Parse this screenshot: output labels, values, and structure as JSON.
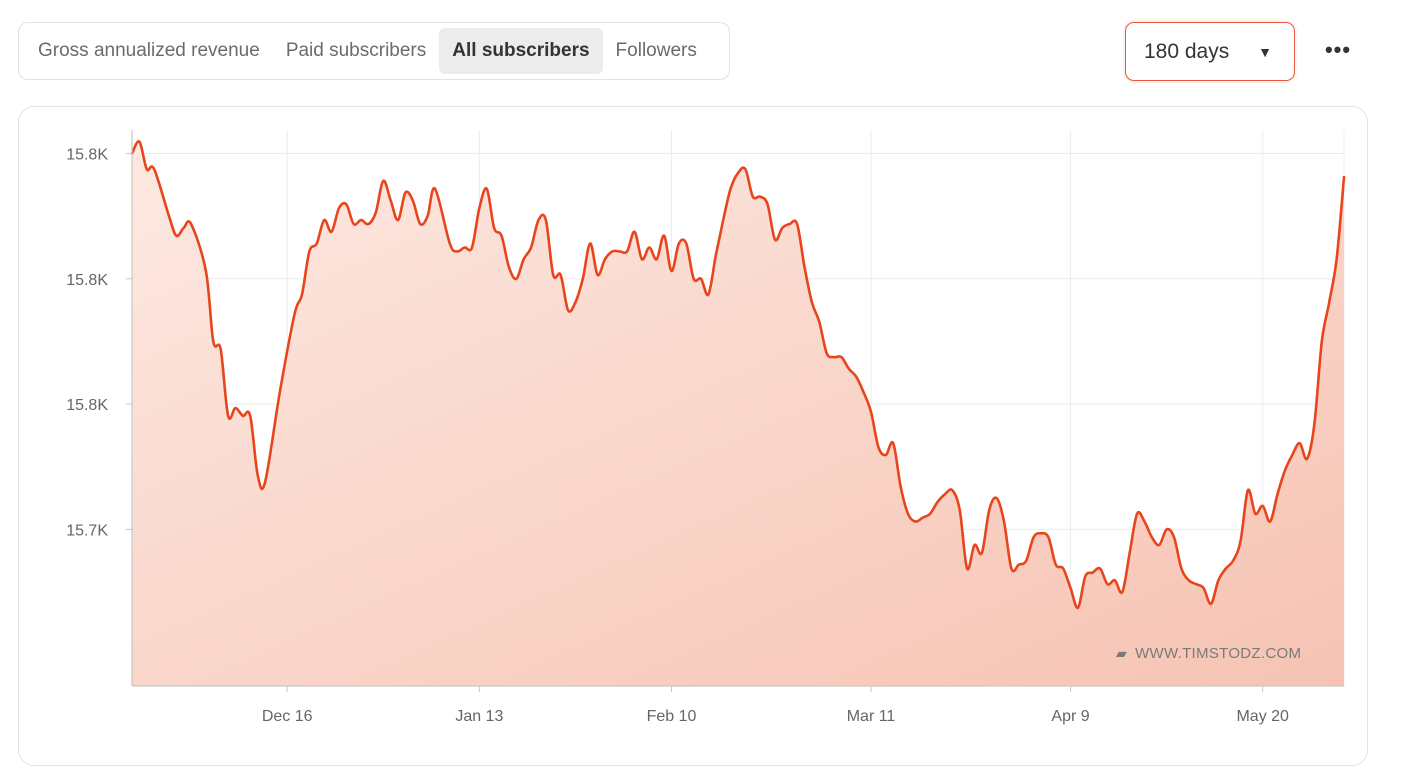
{
  "tabs": [
    {
      "label": "Gross annualized revenue",
      "active": false
    },
    {
      "label": "Paid subscribers",
      "active": false
    },
    {
      "label": "All subscribers",
      "active": true
    },
    {
      "label": "Followers",
      "active": false
    }
  ],
  "range_select": {
    "value": "180 days",
    "icon": "triangle-down-icon"
  },
  "more_menu": {
    "icon": "more-horizontal-icon",
    "glyph": "•••"
  },
  "watermark": {
    "text": "WWW.TIMSTODZ.COM",
    "icon": "bookmark-icon"
  },
  "colors": {
    "line": "#e8451c",
    "fill_top": "#f6c3b3",
    "fill_bottom": "#fde9e2",
    "accent_border": "#e8573d"
  },
  "chart_data": {
    "type": "area",
    "title": "",
    "xlabel": "",
    "ylabel": "",
    "x_tick_labels": [
      "Dec 16",
      "Jan 13",
      "Feb 10",
      "Mar 11",
      "Apr 9",
      "May 20"
    ],
    "y_tick_labels": [
      "15.8K",
      "15.8K",
      "15.8K",
      "15.7K"
    ],
    "series": [
      {
        "values": [
          [
            0,
            15826
          ],
          [
            1,
            15829
          ],
          [
            2,
            15822
          ],
          [
            3,
            15822
          ],
          [
            5,
            15810
          ],
          [
            6,
            15805
          ],
          [
            7,
            15807
          ],
          [
            8,
            15808
          ],
          [
            10,
            15796
          ],
          [
            11,
            15778
          ],
          [
            12,
            15776
          ],
          [
            13,
            15759
          ],
          [
            14,
            15761
          ],
          [
            15,
            15759
          ],
          [
            16,
            15759
          ],
          [
            17,
            15744
          ],
          [
            18,
            15742
          ],
          [
            20,
            15765
          ],
          [
            22,
            15785
          ],
          [
            23,
            15790
          ],
          [
            24,
            15801
          ],
          [
            25,
            15803
          ],
          [
            26,
            15809
          ],
          [
            27,
            15806
          ],
          [
            28,
            15812
          ],
          [
            29,
            15813
          ],
          [
            30,
            15808
          ],
          [
            31,
            15809
          ],
          [
            32,
            15808
          ],
          [
            33,
            15811
          ],
          [
            34,
            15819
          ],
          [
            35,
            15814
          ],
          [
            36,
            15809
          ],
          [
            37,
            15816
          ],
          [
            38,
            15814
          ],
          [
            39,
            15808
          ],
          [
            40,
            15810
          ],
          [
            41,
            15817
          ],
          [
            43,
            15803
          ],
          [
            44,
            15801
          ],
          [
            45,
            15802
          ],
          [
            46,
            15802
          ],
          [
            47,
            15812
          ],
          [
            48,
            15817
          ],
          [
            49,
            15807
          ],
          [
            50,
            15805
          ],
          [
            51,
            15797
          ],
          [
            52,
            15794
          ],
          [
            53,
            15799
          ],
          [
            54,
            15802
          ],
          [
            55,
            15809
          ],
          [
            56,
            15809
          ],
          [
            57,
            15795
          ],
          [
            58,
            15795
          ],
          [
            59,
            15786
          ],
          [
            60,
            15788
          ],
          [
            61,
            15794
          ],
          [
            62,
            15803
          ],
          [
            63,
            15795
          ],
          [
            64,
            15799
          ],
          [
            65,
            15801
          ],
          [
            66,
            15801
          ],
          [
            67,
            15801
          ],
          [
            68,
            15806
          ],
          [
            69,
            15799
          ],
          [
            70,
            15802
          ],
          [
            71,
            15799
          ],
          [
            72,
            15805
          ],
          [
            73,
            15796
          ],
          [
            74,
            15803
          ],
          [
            75,
            15803
          ],
          [
            76,
            15794
          ],
          [
            77,
            15794
          ],
          [
            78,
            15790
          ],
          [
            79,
            15800
          ],
          [
            80,
            15809
          ],
          [
            81,
            15817
          ],
          [
            82,
            15821
          ],
          [
            83,
            15822
          ],
          [
            84,
            15815
          ],
          [
            85,
            15815
          ],
          [
            86,
            15813
          ],
          [
            87,
            15804
          ],
          [
            88,
            15807
          ],
          [
            89,
            15808
          ],
          [
            90,
            15808
          ],
          [
            91,
            15797
          ],
          [
            92,
            15788
          ],
          [
            93,
            15783
          ],
          [
            94,
            15775
          ],
          [
            95,
            15774
          ],
          [
            96,
            15774
          ],
          [
            97,
            15771
          ],
          [
            98,
            15769
          ],
          [
            99,
            15765
          ],
          [
            100,
            15760
          ],
          [
            101,
            15751
          ],
          [
            102,
            15749
          ],
          [
            103,
            15752
          ],
          [
            104,
            15741
          ],
          [
            105,
            15734
          ],
          [
            106,
            15732
          ],
          [
            107,
            15733
          ],
          [
            108,
            15734
          ],
          [
            109,
            15737
          ],
          [
            110,
            15739
          ],
          [
            111,
            15740
          ],
          [
            112,
            15735
          ],
          [
            113,
            15720
          ],
          [
            114,
            15726
          ],
          [
            115,
            15724
          ],
          [
            116,
            15735
          ],
          [
            117,
            15738
          ],
          [
            118,
            15732
          ],
          [
            119,
            15720
          ],
          [
            120,
            15721
          ],
          [
            121,
            15722
          ],
          [
            122,
            15728
          ],
          [
            123,
            15729
          ],
          [
            124,
            15728
          ],
          [
            125,
            15721
          ],
          [
            126,
            15720
          ],
          [
            127,
            15715
          ],
          [
            128,
            15710
          ],
          [
            129,
            15718
          ],
          [
            130,
            15719
          ],
          [
            131,
            15720
          ],
          [
            132,
            15716
          ],
          [
            133,
            15717
          ],
          [
            134,
            15714
          ],
          [
            135,
            15724
          ],
          [
            136,
            15734
          ],
          [
            137,
            15732
          ],
          [
            138,
            15728
          ],
          [
            139,
            15726
          ],
          [
            140,
            15730
          ],
          [
            141,
            15728
          ],
          [
            142,
            15720
          ],
          [
            143,
            15717
          ],
          [
            144,
            15716
          ],
          [
            145,
            15715
          ],
          [
            146,
            15711
          ],
          [
            147,
            15717
          ],
          [
            148,
            15720
          ],
          [
            149,
            15722
          ],
          [
            150,
            15727
          ],
          [
            151,
            15740
          ],
          [
            152,
            15734
          ],
          [
            153,
            15736
          ],
          [
            154,
            15732
          ],
          [
            155,
            15739
          ],
          [
            156,
            15745
          ],
          [
            157,
            15749
          ],
          [
            158,
            15752
          ],
          [
            159,
            15748
          ],
          [
            160,
            15757
          ],
          [
            161,
            15778
          ],
          [
            162,
            15788
          ],
          [
            163,
            15799
          ],
          [
            164,
            15820
          ]
        ]
      }
    ],
    "ylim": [
      15690,
      15832
    ],
    "xlim": [
      0,
      164
    ],
    "x_tick_positions": [
      21,
      47,
      73,
      100,
      127,
      153
    ],
    "y_tick_positions": [
      15826,
      15794,
      15762,
      15730
    ],
    "grid": true
  }
}
